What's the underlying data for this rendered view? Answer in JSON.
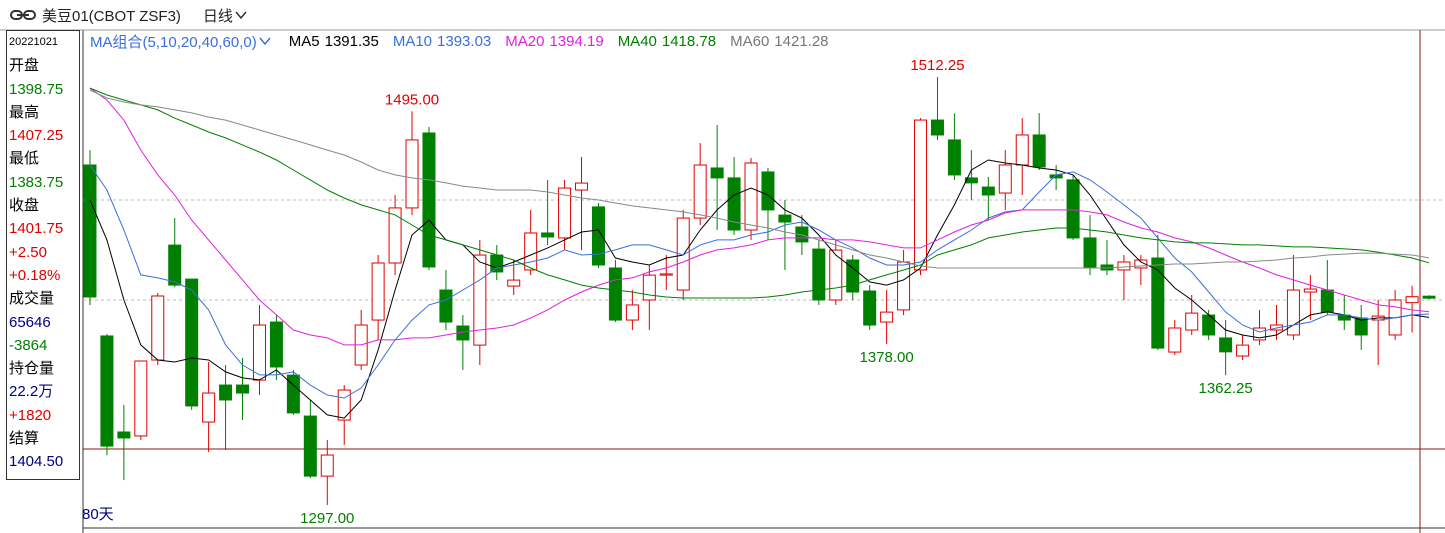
{
  "header": {
    "title": "美豆01(CBOT ZSF3)",
    "period": "日线"
  },
  "info_panel": {
    "date": "20221021",
    "open_label": "开盘",
    "high_label": "最高",
    "low_label": "最低",
    "close_label": "收盘",
    "change": "+2.50",
    "change_pct": "+0.18%",
    "volume_label": "成交量",
    "volume": "65646",
    "volume_change": "-3864",
    "oi_label": "持仓量",
    "oi": "22.2万",
    "oi_change": "+1820",
    "settle_label": "结算",
    "settle": "1404.50"
  },
  "chart_data": {
    "type": "candlestick",
    "legend_title": "MA组合(5,10,20,40,60,0)",
    "period_label": "80天",
    "up_color": "#e00000",
    "down_color": "#008000",
    "ylim": [
      1285.4,
      1535.9
    ],
    "candles": [
      {
        "open": 1468,
        "high": 1475.5,
        "low": 1397.5,
        "close": 1401.6
      },
      {
        "open": 1382,
        "high": 1383,
        "low": 1322,
        "close": 1326.6
      },
      {
        "open": 1333.7,
        "high": 1347.3,
        "low": 1309.5,
        "close": 1330.7
      },
      {
        "open": 1331.7,
        "high": 1369.4,
        "low": 1329.7,
        "close": 1369.4
      },
      {
        "open": 1369.9,
        "high": 1403.6,
        "low": 1367.4,
        "close": 1402.1
      },
      {
        "open": 1427.7,
        "high": 1441.3,
        "low": 1406.6,
        "close": 1407.6
      },
      {
        "open": 1410.6,
        "high": 1410.6,
        "low": 1344.8,
        "close": 1346.8
      },
      {
        "open": 1338.7,
        "high": 1368.9,
        "low": 1323.6,
        "close": 1353.3
      },
      {
        "open": 1357.3,
        "high": 1367.4,
        "low": 1324.6,
        "close": 1349.8
      },
      {
        "open": 1357.3,
        "high": 1370.9,
        "low": 1339.7,
        "close": 1353.3
      },
      {
        "open": 1359.8,
        "high": 1397.6,
        "low": 1352.3,
        "close": 1387.5
      },
      {
        "open": 1389,
        "high": 1392.5,
        "low": 1359.8,
        "close": 1366.4
      },
      {
        "open": 1362.3,
        "high": 1364.9,
        "low": 1342.3,
        "close": 1343.3
      },
      {
        "open": 1341.7,
        "high": 1349.8,
        "low": 1310.5,
        "close": 1311.5
      },
      {
        "open": 1311.5,
        "high": 1329.7,
        "low": 1297,
        "close": 1322.1
      },
      {
        "open": 1339.7,
        "high": 1357.3,
        "low": 1327.2,
        "close": 1354.8
      },
      {
        "open": 1367.4,
        "high": 1395.1,
        "low": 1364.9,
        "close": 1387.5
      },
      {
        "open": 1390,
        "high": 1422.7,
        "low": 1380,
        "close": 1418.7
      },
      {
        "open": 1418.7,
        "high": 1452.9,
        "low": 1412.6,
        "close": 1446.4
      },
      {
        "open": 1446.4,
        "high": 1495,
        "low": 1442.8,
        "close": 1480.6
      },
      {
        "open": 1484.1,
        "high": 1487.1,
        "low": 1415.2,
        "close": 1416.7
      },
      {
        "open": 1405.1,
        "high": 1415.2,
        "low": 1385,
        "close": 1389
      },
      {
        "open": 1387,
        "high": 1392.5,
        "low": 1364.9,
        "close": 1380
      },
      {
        "open": 1377.4,
        "high": 1430.3,
        "low": 1367.4,
        "close": 1422.7
      },
      {
        "open": 1422.7,
        "high": 1427.7,
        "low": 1410.1,
        "close": 1414.2
      },
      {
        "open": 1407.1,
        "high": 1420.2,
        "low": 1402.6,
        "close": 1410.1
      },
      {
        "open": 1415.2,
        "high": 1445.4,
        "low": 1412.6,
        "close": 1433.8
      },
      {
        "open": 1433.8,
        "high": 1460.5,
        "low": 1427.7,
        "close": 1431.8
      },
      {
        "open": 1431.3,
        "high": 1460.5,
        "low": 1425.2,
        "close": 1456.4
      },
      {
        "open": 1455.4,
        "high": 1472,
        "low": 1425.2,
        "close": 1458.9
      },
      {
        "open": 1446.9,
        "high": 1448.9,
        "low": 1416.2,
        "close": 1417.7
      },
      {
        "open": 1416.2,
        "high": 1420.2,
        "low": 1389,
        "close": 1390
      },
      {
        "open": 1390,
        "high": 1405.1,
        "low": 1385,
        "close": 1397.6
      },
      {
        "open": 1400.1,
        "high": 1417.7,
        "low": 1385,
        "close": 1412.6
      },
      {
        "open": 1412.6,
        "high": 1422.7,
        "low": 1405.1,
        "close": 1413.2
      },
      {
        "open": 1405.1,
        "high": 1445.4,
        "low": 1400.1,
        "close": 1441.3
      },
      {
        "open": 1441.3,
        "high": 1479,
        "low": 1437.8,
        "close": 1468
      },
      {
        "open": 1466.5,
        "high": 1488.1,
        "low": 1435.3,
        "close": 1461.5
      },
      {
        "open": 1461.5,
        "high": 1472,
        "low": 1432.8,
        "close": 1435.3
      },
      {
        "open": 1435.3,
        "high": 1471.5,
        "low": 1430.3,
        "close": 1469
      },
      {
        "open": 1464.5,
        "high": 1466.5,
        "low": 1430.3,
        "close": 1445.4
      },
      {
        "open": 1442.8,
        "high": 1450.4,
        "low": 1415.2,
        "close": 1439.3
      },
      {
        "open": 1436.8,
        "high": 1442.8,
        "low": 1422.7,
        "close": 1429.3
      },
      {
        "open": 1425.7,
        "high": 1430.3,
        "low": 1397.6,
        "close": 1400.1
      },
      {
        "open": 1400.1,
        "high": 1430.3,
        "low": 1397.6,
        "close": 1425.2
      },
      {
        "open": 1420.2,
        "high": 1422.7,
        "low": 1400.1,
        "close": 1404.1
      },
      {
        "open": 1404.6,
        "high": 1407.6,
        "low": 1385,
        "close": 1387.5
      },
      {
        "open": 1389,
        "high": 1405.1,
        "low": 1378,
        "close": 1394
      },
      {
        "open": 1395.1,
        "high": 1425.2,
        "low": 1392.5,
        "close": 1419.2
      },
      {
        "open": 1415.2,
        "high": 1491.6,
        "low": 1412.6,
        "close": 1490.6
      },
      {
        "open": 1490.6,
        "high": 1512.25,
        "low": 1480.6,
        "close": 1483.1
      },
      {
        "open": 1480.6,
        "high": 1494,
        "low": 1460.5,
        "close": 1463
      },
      {
        "open": 1461.5,
        "high": 1475.5,
        "low": 1450.4,
        "close": 1459
      },
      {
        "open": 1456.9,
        "high": 1462,
        "low": 1440.3,
        "close": 1452.9
      },
      {
        "open": 1453.9,
        "high": 1475.5,
        "low": 1445.4,
        "close": 1468
      },
      {
        "open": 1468,
        "high": 1491.6,
        "low": 1452.9,
        "close": 1483.1
      },
      {
        "open": 1483.1,
        "high": 1494.1,
        "low": 1465.5,
        "close": 1467
      },
      {
        "open": 1463,
        "high": 1468,
        "low": 1455.4,
        "close": 1461.5
      },
      {
        "open": 1460.5,
        "high": 1463,
        "low": 1430.3,
        "close": 1431.3
      },
      {
        "open": 1431.3,
        "high": 1442.8,
        "low": 1412.6,
        "close": 1416.2
      },
      {
        "open": 1417.7,
        "high": 1430.3,
        "low": 1412.6,
        "close": 1415.2
      },
      {
        "open": 1415.2,
        "high": 1422.7,
        "low": 1400.1,
        "close": 1419.2
      },
      {
        "open": 1416.2,
        "high": 1422.7,
        "low": 1407.6,
        "close": 1420.2
      },
      {
        "open": 1421.2,
        "high": 1432.8,
        "low": 1374.9,
        "close": 1375.9
      },
      {
        "open": 1373.9,
        "high": 1390,
        "low": 1372.4,
        "close": 1386
      },
      {
        "open": 1385,
        "high": 1402.6,
        "low": 1382.5,
        "close": 1393.5
      },
      {
        "open": 1392.5,
        "high": 1395.1,
        "low": 1380,
        "close": 1382.5
      },
      {
        "open": 1381,
        "high": 1390,
        "low": 1362.25,
        "close": 1374
      },
      {
        "open": 1371.9,
        "high": 1382.5,
        "low": 1369.9,
        "close": 1377.4
      },
      {
        "open": 1380,
        "high": 1395.1,
        "low": 1377.4,
        "close": 1386
      },
      {
        "open": 1385,
        "high": 1397.6,
        "low": 1380,
        "close": 1387.5
      },
      {
        "open": 1382.5,
        "high": 1422.7,
        "low": 1380,
        "close": 1405.1
      },
      {
        "open": 1404.1,
        "high": 1412.6,
        "low": 1390,
        "close": 1405.6
      },
      {
        "open": 1405.1,
        "high": 1420.2,
        "low": 1392.5,
        "close": 1394
      },
      {
        "open": 1392.5,
        "high": 1402.6,
        "low": 1385,
        "close": 1390
      },
      {
        "open": 1391,
        "high": 1397.6,
        "low": 1375,
        "close": 1382.5
      },
      {
        "open": 1390,
        "high": 1400.1,
        "low": 1367.4,
        "close": 1392
      },
      {
        "open": 1382.5,
        "high": 1405.1,
        "low": 1380,
        "close": 1400.1
      },
      {
        "open": 1398.75,
        "high": 1407.25,
        "low": 1383.75,
        "close": 1401.75
      },
      {
        "open": 1402,
        "high": 1402.5,
        "low": 1400.5,
        "close": 1401
      }
    ],
    "series": [
      {
        "name": "MA5",
        "color": "#000000",
        "values": [
          1450.4,
          1430.3,
          1400.1,
          1377.5,
          1369.9,
          1368.9,
          1370.9,
          1369.9,
          1363.9,
          1360.9,
          1359.9,
          1364.9,
          1357.3,
          1349.8,
          1342.3,
          1340.7,
          1349.8,
          1374.9,
          1405.1,
          1432.8,
          1440.3,
          1430.3,
          1427.8,
          1419.2,
          1416.2,
          1419.2,
          1422.7,
          1426.3,
          1430.3,
          1434.3,
          1435.3,
          1421.2,
          1419.2,
          1417.7,
          1421.2,
          1422.7,
          1435.3,
          1445.4,
          1452.9,
          1456.4,
          1452.9,
          1445.4,
          1441.3,
          1432.8,
          1422.7,
          1416.2,
          1409.2,
          1407.6,
          1410.2,
          1416.2,
          1432.8,
          1447.9,
          1465.5,
          1470.5,
          1469,
          1468,
          1466.5,
          1465.5,
          1463,
          1452.9,
          1440.3,
          1427.8,
          1419.2,
          1415.2,
          1406.1,
          1400.1,
          1392.6,
          1385,
          1382.5,
          1381,
          1382.5,
          1387.5,
          1392.6,
          1394.1,
          1392.6,
          1390,
          1391.1,
          1391.1,
          1392.6,
          1391.35
        ]
      },
      {
        "name": "MA10",
        "color": "#3a6fd8",
        "values": [
          1468,
          1455.4,
          1435.3,
          1412.7,
          1411.2,
          1409.2,
          1405.1,
          1395.1,
          1377.5,
          1367.4,
          1362.4,
          1362.4,
          1363.9,
          1357.3,
          1352.3,
          1350.8,
          1355.8,
          1367.4,
          1380,
          1390,
          1397.6,
          1400.1,
          1405.1,
          1410.2,
          1416.2,
          1417.7,
          1419.2,
          1421.2,
          1425.3,
          1422.7,
          1423.2,
          1425.3,
          1427.8,
          1427.8,
          1425.3,
          1422.7,
          1427.8,
          1430.3,
          1430.3,
          1432.8,
          1434.3,
          1437.8,
          1439.3,
          1435.3,
          1430.3,
          1426.3,
          1421.2,
          1417.7,
          1417.7,
          1419.2,
          1425.3,
          1430.3,
          1435.3,
          1441.3,
          1444.4,
          1445.4,
          1454.4,
          1463,
          1464.5,
          1460.5,
          1454.4,
          1447.9,
          1441.3,
          1431.3,
          1421.2,
          1414.2,
          1404.1,
          1394.1,
          1387.5,
          1384,
          1386,
          1387.5,
          1389,
          1392.6,
          1392.6,
          1391.1,
          1390,
          1391.1,
          1392.6,
          1393.03
        ]
      },
      {
        "name": "MA20",
        "color": "#e020e0",
        "values": [
          1506.7,
          1500.7,
          1490.6,
          1475.5,
          1463,
          1452.9,
          1440.3,
          1430.3,
          1420.2,
          1410.2,
          1400.1,
          1392.6,
          1385,
          1382.5,
          1381,
          1377.5,
          1377.5,
          1380,
          1380,
          1381,
          1381,
          1382.5,
          1384,
          1385,
          1386,
          1387.5,
          1391.1,
          1395.1,
          1400.1,
          1404.1,
          1407.6,
          1410.2,
          1411.2,
          1414.2,
          1416.2,
          1419.2,
          1422.7,
          1425.3,
          1426.3,
          1427.8,
          1430.3,
          1431.3,
          1431.3,
          1431.3,
          1430.3,
          1430.3,
          1429.3,
          1427.8,
          1426.3,
          1426.3,
          1430.3,
          1434.3,
          1437.8,
          1440.3,
          1443.9,
          1445.4,
          1445.4,
          1445.4,
          1445.4,
          1444.4,
          1442.9,
          1439.3,
          1436.3,
          1434.3,
          1431.3,
          1429.3,
          1426.3,
          1422.7,
          1419.2,
          1416.2,
          1412.7,
          1410.2,
          1407.6,
          1405.1,
          1402.6,
          1400.1,
          1397.6,
          1396.6,
          1395.1,
          1394.19
        ]
      },
      {
        "name": "MA40",
        "color": "#008000",
        "values": [
          1506.7,
          1503.2,
          1500.7,
          1498.2,
          1495.7,
          1491.6,
          1488.1,
          1484.6,
          1481.6,
          1478.1,
          1474.5,
          1470.5,
          1465.5,
          1460.5,
          1455.4,
          1451.4,
          1447.9,
          1445.4,
          1442.9,
          1437.8,
          1432.8,
          1430.3,
          1427.8,
          1425.3,
          1422.7,
          1420.2,
          1416.2,
          1412.7,
          1410.2,
          1407.6,
          1406.1,
          1405.1,
          1404.1,
          1402.6,
          1401.6,
          1401.1,
          1401.1,
          1401.1,
          1401.1,
          1401.1,
          1401.6,
          1402.6,
          1404.1,
          1405.1,
          1406.1,
          1407.6,
          1410.2,
          1412.7,
          1415.2,
          1417.7,
          1422.7,
          1425.3,
          1427.8,
          1431.3,
          1432.8,
          1434.3,
          1435.3,
          1436.3,
          1436.3,
          1435.3,
          1434.3,
          1432.8,
          1431.3,
          1430.3,
          1429.3,
          1428.8,
          1428.8,
          1428.3,
          1427.8,
          1427.8,
          1427.3,
          1426.8,
          1426.8,
          1426.3,
          1425.8,
          1425.3,
          1424.2,
          1422.7,
          1421.2,
          1418.78
        ]
      },
      {
        "name": "MA60",
        "color": "#888888",
        "values": [
          1505.7,
          1501.7,
          1499.7,
          1498.2,
          1497.2,
          1495.7,
          1494.2,
          1492.1,
          1490.6,
          1488.1,
          1485.6,
          1483.1,
          1480.6,
          1478.1,
          1475.5,
          1473,
          1469.5,
          1465.5,
          1463,
          1461.5,
          1460.5,
          1459,
          1457.4,
          1456.4,
          1455.4,
          1455.4,
          1455.4,
          1454.4,
          1452.9,
          1451.4,
          1450.4,
          1448.9,
          1447.4,
          1446.4,
          1445.4,
          1444.4,
          1442.9,
          1441.3,
          1439.3,
          1437.8,
          1436.3,
          1434.3,
          1432.8,
          1430.3,
          1427.8,
          1425.3,
          1422.7,
          1421.2,
          1419.2,
          1417.2,
          1416.2,
          1416.2,
          1416.2,
          1416.2,
          1416.2,
          1416.2,
          1416.2,
          1416.2,
          1416.2,
          1416.2,
          1416.2,
          1416.7,
          1417.2,
          1417.7,
          1418.2,
          1418.2,
          1418.7,
          1419.2,
          1419.2,
          1419.7,
          1420.2,
          1421.2,
          1421.7,
          1422.7,
          1423.2,
          1423.7,
          1423.7,
          1423.2,
          1422.7,
          1421.28
        ]
      }
    ],
    "annotations": [
      {
        "text": "1495.00",
        "value": 1495
      },
      {
        "text": "1512.25",
        "value": 1512.25
      },
      {
        "text": "1297.00",
        "value": 1297
      },
      {
        "text": "1378.00",
        "value": 1378
      },
      {
        "text": "1362.25",
        "value": 1362.25
      }
    ]
  }
}
